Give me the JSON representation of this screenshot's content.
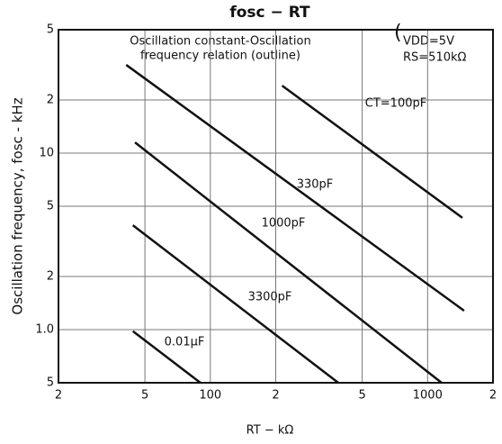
{
  "chart_data": {
    "type": "line",
    "title": "fosc − RT",
    "annotations": [
      "Oscillation constant-Oscillation",
      "frequency relation (outline)",
      "VDD=5V",
      "RS=510kΩ"
    ],
    "xlabel": "RT − kΩ",
    "ylabel": "Oscillation frequency, fosc - kHz",
    "xscale": "log",
    "yscale": "log",
    "xlim": [
      20,
      2000
    ],
    "ylim": [
      0.5,
      50
    ],
    "xticks": [
      {
        "value": 20,
        "label": "2"
      },
      {
        "value": 50,
        "label": "5"
      },
      100,
      {
        "value": 200,
        "label": "2"
      },
      {
        "value": 500,
        "label": "5"
      },
      1000,
      {
        "value": 2000,
        "label": "2"
      }
    ],
    "yticks": [
      {
        "value": 0.5,
        "label": "5"
      },
      {
        "value": 1,
        "label": "1.0"
      },
      2,
      5,
      10,
      {
        "value": 20,
        "label": "2"
      },
      {
        "value": 50,
        "label": "5"
      }
    ],
    "grid": true,
    "series": [
      {
        "name": "CT=100pF",
        "color": "#111111",
        "x": [
          214,
          1446
        ],
        "values": [
          24.1,
          4.3
        ]
      },
      {
        "name": "330pF",
        "color": "#111111",
        "x": [
          41,
          1472
        ],
        "values": [
          31.6,
          1.28
        ]
      },
      {
        "name": "1000pF",
        "color": "#111111",
        "x": [
          45,
          1160
        ],
        "values": [
          11.5,
          0.5
        ]
      },
      {
        "name": "3300pF",
        "color": "#111111",
        "x": [
          44,
          388
        ],
        "values": [
          3.9,
          0.5
        ]
      },
      {
        "name": "0.01μF",
        "color": "#111111",
        "x": [
          44,
          90
        ],
        "values": [
          0.98,
          0.5
        ]
      }
    ]
  }
}
